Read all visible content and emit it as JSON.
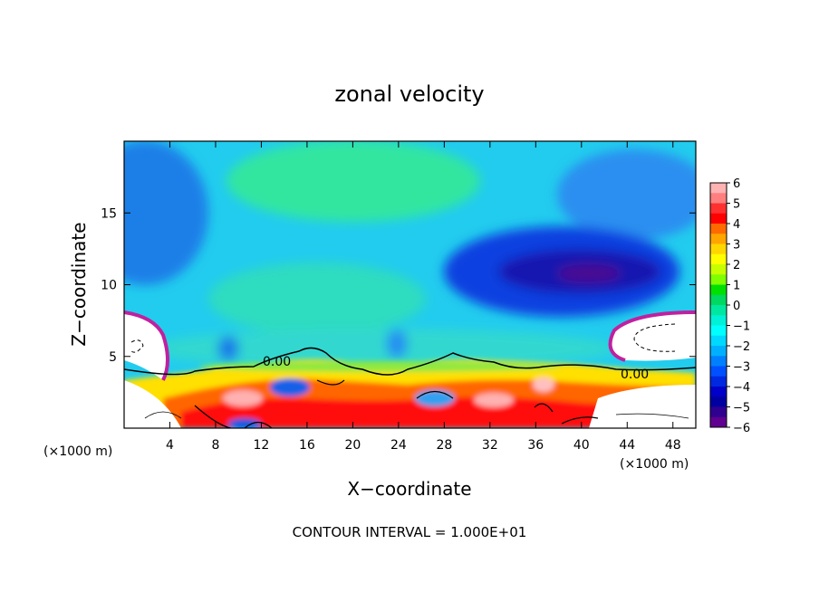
{
  "chart_data": {
    "type": "heatmap",
    "title": "zonal velocity",
    "xlabel": "X−coordinate",
    "ylabel": "Z−coordinate",
    "x_unit_left": "(×1000 m)",
    "x_unit_right": "(×1000 m)",
    "xlim": [
      0,
      50
    ],
    "ylim": [
      0,
      20
    ],
    "x_ticks": [
      4,
      8,
      12,
      16,
      20,
      24,
      28,
      32,
      36,
      40,
      44,
      48
    ],
    "y_ticks": [
      5,
      10,
      15
    ],
    "colorbar": {
      "min": -6,
      "max": 6,
      "ticks": [
        "6",
        "5",
        "4",
        "3",
        "2",
        "1",
        "0",
        "−1",
        "−2",
        "−3",
        "−4",
        "−5",
        "−6"
      ],
      "colors": [
        "#ffb2b2",
        "#ff7f7f",
        "#ff3030",
        "#ff0000",
        "#ff6a00",
        "#ffa500",
        "#ffd700",
        "#ffff00",
        "#c8ff00",
        "#7fff00",
        "#00e000",
        "#00d860",
        "#00e8a0",
        "#00f0d8",
        "#00ffff",
        "#00d8ff",
        "#00b0ff",
        "#0080ff",
        "#0050ff",
        "#0028e0",
        "#0000c8",
        "#0000a0",
        "#300090",
        "#600090"
      ]
    },
    "contour_label_1": "0.00",
    "contour_label_2": "0.00",
    "footer": "CONTOUR INTERVAL = 1.000E+01"
  }
}
